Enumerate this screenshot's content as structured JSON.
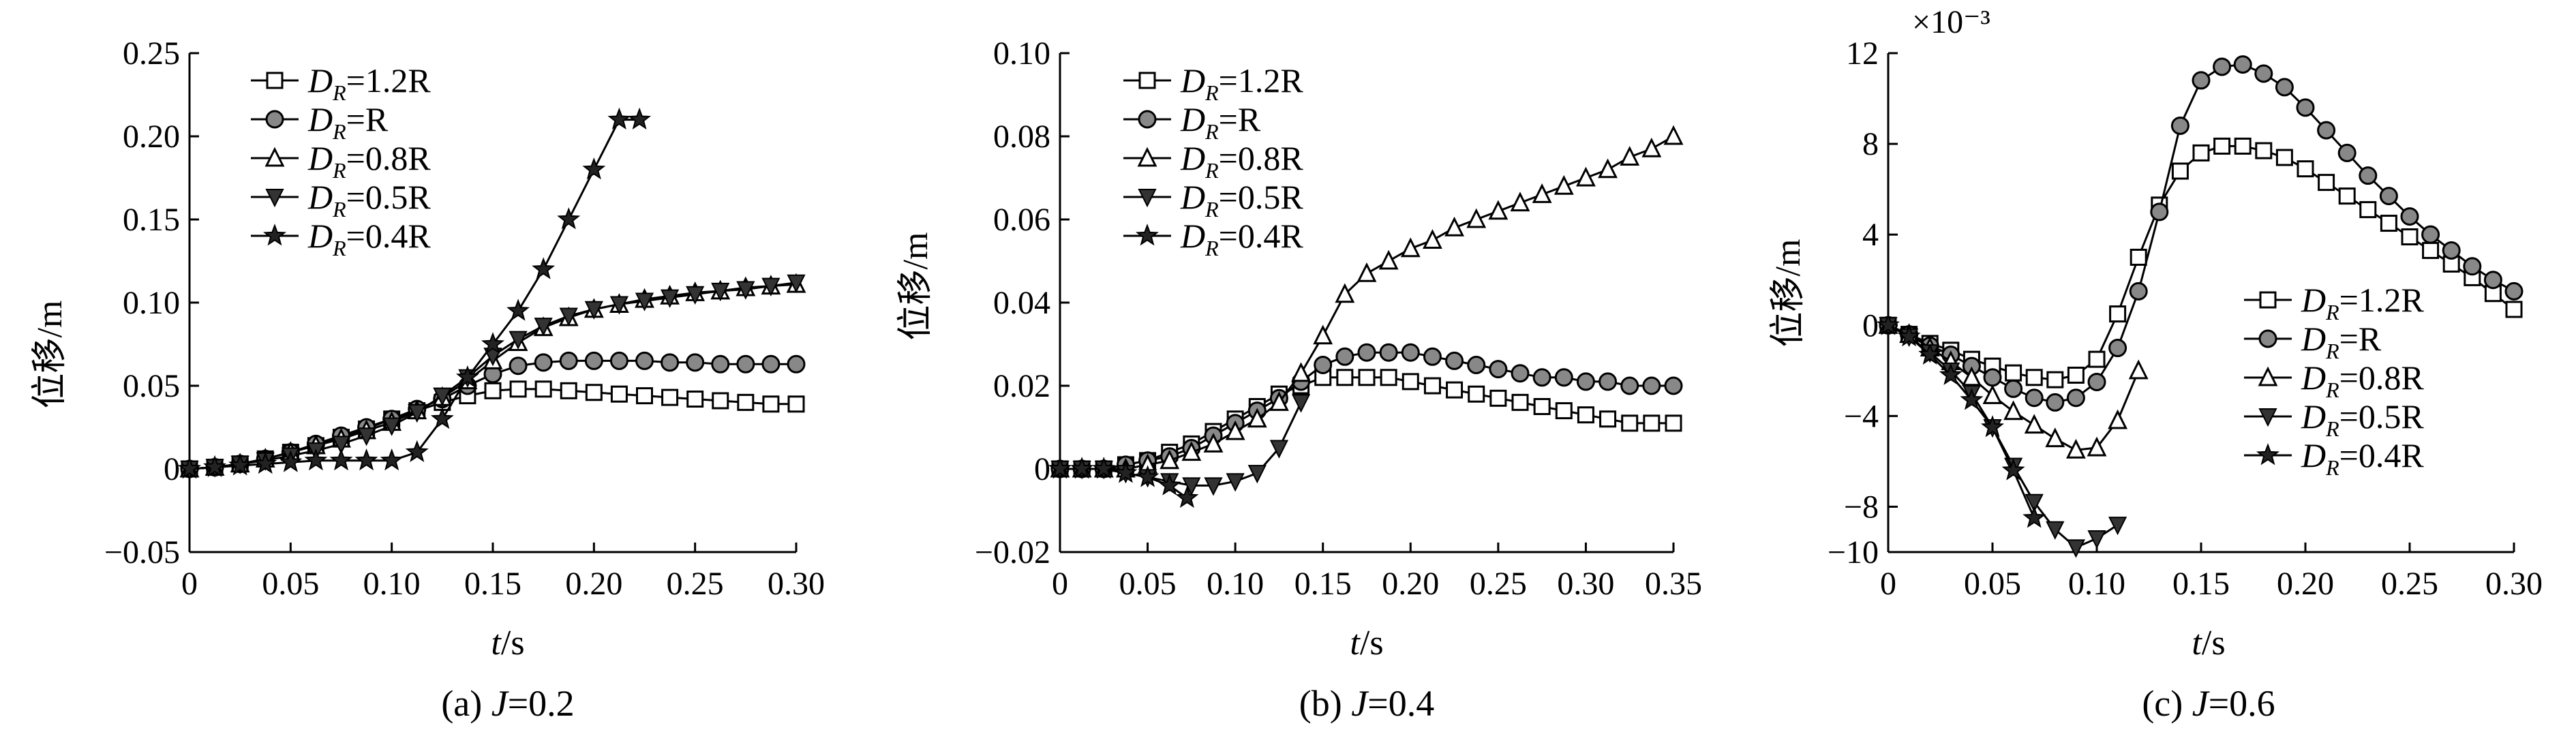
{
  "chart_data": [
    {
      "type": "line",
      "caption_prefix": "(a) ",
      "caption_var": "J",
      "caption_value": "=0.2",
      "xlabel_var": "t",
      "xlabel_unit": "/s",
      "ylabel": "位移/m",
      "xlim": [
        0,
        0.3
      ],
      "ylim": [
        -0.05,
        0.25
      ],
      "xticks": [
        0,
        0.05,
        0.1,
        0.15,
        0.2,
        0.25,
        0.3
      ],
      "xtick_labels": [
        "0",
        "0.05",
        "0.10",
        "0.15",
        "0.20",
        "0.25",
        "0.30"
      ],
      "yticks": [
        -0.05,
        0,
        0.05,
        0.1,
        0.15,
        0.2,
        0.25
      ],
      "ytick_labels": [
        "−0.05",
        "0",
        "0.05",
        "0.10",
        "0.15",
        "0.20",
        "0.25"
      ],
      "legend_position": "top-left",
      "series": [
        {
          "name": "1.2R",
          "marker": "square",
          "x": [
            0,
            0.0125,
            0.025,
            0.0375,
            0.05,
            0.0625,
            0.075,
            0.0875,
            0.1,
            0.1125,
            0.125,
            0.1375,
            0.15,
            0.1625,
            0.175,
            0.1875,
            0.2,
            0.2125,
            0.225,
            0.2375,
            0.25,
            0.2625,
            0.275,
            0.2875,
            0.3
          ],
          "y": [
            0,
            0.001,
            0.003,
            0.006,
            0.01,
            0.014,
            0.019,
            0.024,
            0.03,
            0.035,
            0.04,
            0.044,
            0.047,
            0.048,
            0.048,
            0.047,
            0.046,
            0.045,
            0.044,
            0.043,
            0.042,
            0.041,
            0.04,
            0.039,
            0.039
          ]
        },
        {
          "name": "R",
          "marker": "circle",
          "x": [
            0,
            0.0125,
            0.025,
            0.0375,
            0.05,
            0.0625,
            0.075,
            0.0875,
            0.1,
            0.1125,
            0.125,
            0.1375,
            0.15,
            0.1625,
            0.175,
            0.1875,
            0.2,
            0.2125,
            0.225,
            0.2375,
            0.25,
            0.2625,
            0.275,
            0.2875,
            0.3
          ],
          "y": [
            0,
            0.001,
            0.003,
            0.006,
            0.01,
            0.015,
            0.02,
            0.025,
            0.03,
            0.036,
            0.042,
            0.05,
            0.057,
            0.062,
            0.064,
            0.065,
            0.065,
            0.065,
            0.065,
            0.064,
            0.064,
            0.063,
            0.063,
            0.063,
            0.063
          ]
        },
        {
          "name": "0.8R",
          "marker": "triangle-up",
          "x": [
            0,
            0.0125,
            0.025,
            0.0375,
            0.05,
            0.0625,
            0.075,
            0.0875,
            0.1,
            0.1125,
            0.125,
            0.1375,
            0.15,
            0.1625,
            0.175,
            0.1875,
            0.2,
            0.2125,
            0.225,
            0.2375,
            0.25,
            0.2625,
            0.275,
            0.2875,
            0.3
          ],
          "y": [
            0,
            0.001,
            0.003,
            0.006,
            0.01,
            0.014,
            0.018,
            0.023,
            0.028,
            0.035,
            0.043,
            0.053,
            0.065,
            0.076,
            0.085,
            0.091,
            0.096,
            0.099,
            0.102,
            0.104,
            0.106,
            0.107,
            0.109,
            0.11,
            0.111
          ]
        },
        {
          "name": "0.5R",
          "marker": "triangle-down",
          "x": [
            0,
            0.0125,
            0.025,
            0.0375,
            0.05,
            0.0625,
            0.075,
            0.0875,
            0.1,
            0.1125,
            0.125,
            0.1375,
            0.15,
            0.1625,
            0.175,
            0.1875,
            0.2,
            0.2125,
            0.225,
            0.2375,
            0.25,
            0.2625,
            0.275,
            0.2875,
            0.3
          ],
          "y": [
            0,
            0.001,
            0.003,
            0.005,
            0.008,
            0.011,
            0.015,
            0.02,
            0.026,
            0.034,
            0.044,
            0.055,
            0.068,
            0.078,
            0.086,
            0.092,
            0.096,
            0.099,
            0.101,
            0.103,
            0.105,
            0.107,
            0.108,
            0.11,
            0.112
          ]
        },
        {
          "name": "0.4R",
          "marker": "star",
          "x": [
            0,
            0.0125,
            0.025,
            0.0375,
            0.05,
            0.0625,
            0.075,
            0.0875,
            0.1,
            0.1125,
            0.125,
            0.1375,
            0.15,
            0.1625,
            0.175,
            0.1875,
            0.2,
            0.2125,
            0.2225
          ],
          "y": [
            0,
            0.001,
            0.002,
            0.003,
            0.004,
            0.005,
            0.005,
            0.005,
            0.005,
            0.01,
            0.03,
            0.055,
            0.075,
            0.095,
            0.12,
            0.15,
            0.18,
            0.21,
            0.21
          ]
        }
      ]
    },
    {
      "type": "line",
      "caption_prefix": "(b) ",
      "caption_var": "J",
      "caption_value": "=0.4",
      "xlabel_var": "t",
      "xlabel_unit": "/s",
      "ylabel": "位移/m",
      "xlim": [
        0,
        0.35
      ],
      "ylim": [
        -0.02,
        0.1
      ],
      "xticks": [
        0,
        0.05,
        0.1,
        0.15,
        0.2,
        0.25,
        0.3,
        0.35
      ],
      "xtick_labels": [
        "0",
        "0.05",
        "0.10",
        "0.15",
        "0.20",
        "0.25",
        "0.30",
        "0.35"
      ],
      "yticks": [
        -0.02,
        0,
        0.02,
        0.04,
        0.06,
        0.08,
        0.1
      ],
      "ytick_labels": [
        "−0.02",
        "0",
        "0.02",
        "0.04",
        "0.06",
        "0.08",
        "0.10"
      ],
      "legend_position": "top-left",
      "series": [
        {
          "name": "1.2R",
          "marker": "square",
          "x": [
            0,
            0.0125,
            0.025,
            0.0375,
            0.05,
            0.0625,
            0.075,
            0.0875,
            0.1,
            0.1125,
            0.125,
            0.1375,
            0.15,
            0.1625,
            0.175,
            0.1875,
            0.2,
            0.2125,
            0.225,
            0.2375,
            0.25,
            0.2625,
            0.275,
            0.2875,
            0.3,
            0.3125,
            0.325,
            0.3375,
            0.35
          ],
          "y": [
            0,
            0.0,
            0.0,
            0.001,
            0.002,
            0.004,
            0.006,
            0.009,
            0.012,
            0.015,
            0.018,
            0.02,
            0.022,
            0.022,
            0.022,
            0.022,
            0.021,
            0.02,
            0.019,
            0.018,
            0.017,
            0.016,
            0.015,
            0.014,
            0.013,
            0.012,
            0.011,
            0.011,
            0.011
          ]
        },
        {
          "name": "R",
          "marker": "circle",
          "x": [
            0,
            0.0125,
            0.025,
            0.0375,
            0.05,
            0.0625,
            0.075,
            0.0875,
            0.1,
            0.1125,
            0.125,
            0.1375,
            0.15,
            0.1625,
            0.175,
            0.1875,
            0.2,
            0.2125,
            0.225,
            0.2375,
            0.25,
            0.2625,
            0.275,
            0.2875,
            0.3,
            0.3125,
            0.325,
            0.3375,
            0.35
          ],
          "y": [
            0,
            0.0,
            0.0,
            0.001,
            0.002,
            0.003,
            0.005,
            0.008,
            0.011,
            0.014,
            0.017,
            0.021,
            0.025,
            0.027,
            0.028,
            0.028,
            0.028,
            0.027,
            0.026,
            0.025,
            0.024,
            0.023,
            0.022,
            0.022,
            0.021,
            0.021,
            0.02,
            0.02,
            0.02
          ]
        },
        {
          "name": "0.8R",
          "marker": "triangle-up",
          "x": [
            0,
            0.0125,
            0.025,
            0.0375,
            0.05,
            0.0625,
            0.075,
            0.0875,
            0.1,
            0.1125,
            0.125,
            0.1375,
            0.15,
            0.1625,
            0.175,
            0.1875,
            0.2,
            0.2125,
            0.225,
            0.2375,
            0.25,
            0.2625,
            0.275,
            0.2875,
            0.3,
            0.3125,
            0.325,
            0.3375,
            0.35
          ],
          "y": [
            0,
            0.0,
            0.0,
            0.0,
            0.001,
            0.002,
            0.004,
            0.006,
            0.009,
            0.012,
            0.016,
            0.023,
            0.032,
            0.042,
            0.047,
            0.05,
            0.053,
            0.055,
            0.058,
            0.06,
            0.062,
            0.064,
            0.066,
            0.068,
            0.07,
            0.072,
            0.075,
            0.077,
            0.08
          ]
        },
        {
          "name": "0.5R",
          "marker": "triangle-down",
          "x": [
            0,
            0.0125,
            0.025,
            0.0375,
            0.05,
            0.0625,
            0.075,
            0.0875,
            0.1,
            0.1125,
            0.125,
            0.1375
          ],
          "y": [
            0,
            0.0,
            0.0,
            -0.001,
            -0.002,
            -0.003,
            -0.004,
            -0.004,
            -0.003,
            -0.001,
            0.005,
            0.016
          ]
        },
        {
          "name": "0.4R",
          "marker": "star",
          "x": [
            0,
            0.0125,
            0.025,
            0.0375,
            0.05,
            0.0625,
            0.0725
          ],
          "y": [
            0,
            0.0,
            0.0,
            -0.001,
            -0.002,
            -0.004,
            -0.007
          ]
        }
      ]
    },
    {
      "type": "line",
      "caption_prefix": "(c) ",
      "caption_var": "J",
      "caption_value": "=0.6",
      "xlabel_var": "t",
      "xlabel_unit": "/s",
      "ylabel": "位移/m",
      "yscale_label": "×10⁻³",
      "xlim": [
        0,
        0.3
      ],
      "ylim": [
        -10,
        12
      ],
      "xticks": [
        0,
        0.05,
        0.1,
        0.15,
        0.2,
        0.25,
        0.3
      ],
      "xtick_labels": [
        "0",
        "0.05",
        "0.10",
        "0.15",
        "0.20",
        "0.25",
        "0.30"
      ],
      "yticks": [
        -10,
        -8,
        -4,
        0,
        4,
        8,
        12
      ],
      "ytick_labels": [
        "−10",
        "−8",
        "−4",
        "0",
        "4",
        "8",
        "12"
      ],
      "legend_position": "lower-right",
      "series": [
        {
          "name": "1.2R",
          "marker": "square",
          "x": [
            0,
            0.01,
            0.02,
            0.03,
            0.04,
            0.05,
            0.06,
            0.07,
            0.08,
            0.09,
            0.1,
            0.11,
            0.12,
            0.13,
            0.14,
            0.15,
            0.16,
            0.17,
            0.18,
            0.19,
            0.2,
            0.21,
            0.22,
            0.23,
            0.24,
            0.25,
            0.26,
            0.27,
            0.28,
            0.29,
            0.3
          ],
          "y": [
            0,
            -0.4,
            -0.8,
            -1.1,
            -1.5,
            -1.8,
            -2.1,
            -2.3,
            -2.4,
            -2.2,
            -1.5,
            0.5,
            3.0,
            5.3,
            6.8,
            7.6,
            7.9,
            7.9,
            7.7,
            7.4,
            6.9,
            6.3,
            5.7,
            5.1,
            4.5,
            3.9,
            3.3,
            2.7,
            2.1,
            1.4,
            0.7
          ]
        },
        {
          "name": "R",
          "marker": "circle",
          "x": [
            0,
            0.01,
            0.02,
            0.03,
            0.04,
            0.05,
            0.06,
            0.07,
            0.08,
            0.09,
            0.1,
            0.11,
            0.12,
            0.13,
            0.14,
            0.15,
            0.16,
            0.17,
            0.18,
            0.19,
            0.2,
            0.21,
            0.22,
            0.23,
            0.24,
            0.25,
            0.26,
            0.27,
            0.28,
            0.29,
            0.3
          ],
          "y": [
            0,
            -0.4,
            -0.9,
            -1.3,
            -1.8,
            -2.3,
            -2.8,
            -3.2,
            -3.4,
            -3.2,
            -2.5,
            -1.0,
            1.5,
            5.0,
            8.8,
            10.8,
            11.4,
            11.5,
            11.1,
            10.5,
            9.6,
            8.6,
            7.6,
            6.6,
            5.7,
            4.8,
            4.0,
            3.3,
            2.6,
            2.0,
            1.5
          ]
        },
        {
          "name": "0.8R",
          "marker": "triangle-up",
          "x": [
            0,
            0.01,
            0.02,
            0.03,
            0.04,
            0.05,
            0.06,
            0.07,
            0.08,
            0.09,
            0.1,
            0.11,
            0.12
          ],
          "y": [
            0,
            -0.4,
            -1.0,
            -1.6,
            -2.3,
            -3.1,
            -3.8,
            -4.4,
            -5.0,
            -5.5,
            -5.4,
            -4.2,
            -2.0
          ]
        },
        {
          "name": "0.5R",
          "marker": "triangle-down",
          "x": [
            0,
            0.01,
            0.02,
            0.03,
            0.04,
            0.05,
            0.06,
            0.07,
            0.08,
            0.09,
            0.1,
            0.11
          ],
          "y": [
            0,
            -0.5,
            -1.2,
            -2.0,
            -3.0,
            -4.5,
            -6.2,
            -7.8,
            -9.0,
            -9.8,
            -9.4,
            -8.8
          ]
        },
        {
          "name": "0.4R",
          "marker": "star",
          "x": [
            0,
            0.01,
            0.02,
            0.03,
            0.04,
            0.05,
            0.06,
            0.07
          ],
          "y": [
            0,
            -0.5,
            -1.3,
            -2.2,
            -3.3,
            -4.5,
            -6.4,
            -8.5
          ]
        }
      ]
    }
  ]
}
